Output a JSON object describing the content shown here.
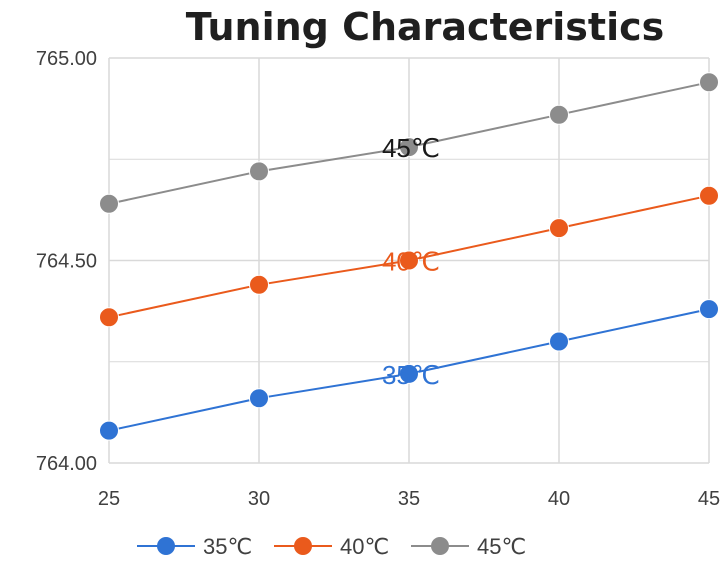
{
  "chart_data": {
    "type": "line",
    "title": "Tuning Characteristics",
    "xlabel": "",
    "ylabel": "",
    "x": [
      25,
      30,
      35,
      40,
      45
    ],
    "x_tick_labels": [
      "25",
      "30",
      "35",
      "40",
      "45"
    ],
    "ylim": [
      764.0,
      765.0
    ],
    "y_tick_labels": [
      "764.00",
      "764.50",
      "765.00"
    ],
    "grid": true,
    "legend_placement": "bottom",
    "series": [
      {
        "name": "35℃",
        "color": "#2f73d4",
        "values": [
          764.08,
          764.16,
          764.22,
          764.3,
          764.38
        ],
        "annotation": "35℃"
      },
      {
        "name": "40℃",
        "color": "#ea5a1c",
        "values": [
          764.36,
          764.44,
          764.5,
          764.58,
          764.66
        ],
        "annotation": "40℃"
      },
      {
        "name": "45℃",
        "color": "#8c8c8c",
        "values": [
          764.64,
          764.72,
          764.78,
          764.86,
          764.94
        ],
        "annotation": "45℃"
      }
    ]
  }
}
